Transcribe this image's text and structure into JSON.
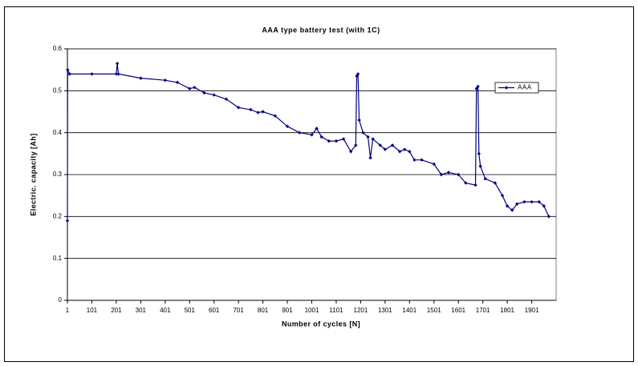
{
  "chart_data": {
    "type": "line",
    "title": "AAA type battery test (with 1C)",
    "x_label": "Number of cycles [N]",
    "y_label": "Electric. capacity [Ah]",
    "xlim": [
      1,
      2001
    ],
    "xticks": [
      1,
      101,
      201,
      301,
      401,
      501,
      601,
      701,
      801,
      901,
      1001,
      1101,
      1201,
      1301,
      1401,
      1501,
      1601,
      1701,
      1801,
      1901
    ],
    "ylim": [
      0,
      0.6
    ],
    "yticks": [
      0,
      0.1,
      0.2,
      0.3,
      0.4,
      0.5,
      0.6
    ],
    "grid": true,
    "legend": "upper right",
    "series": [
      {
        "name": "AAA",
        "color": "#000080",
        "x": [
          1,
          2,
          10,
          101,
          201,
          205,
          210,
          301,
          401,
          451,
          501,
          521,
          561,
          601,
          651,
          701,
          751,
          781,
          801,
          851,
          901,
          951,
          1001,
          1021,
          1041,
          1071,
          1101,
          1131,
          1161,
          1181,
          1185,
          1190,
          1195,
          1211,
          1231,
          1241,
          1251,
          1281,
          1301,
          1331,
          1361,
          1381,
          1401,
          1421,
          1451,
          1501,
          1531,
          1561,
          1601,
          1631,
          1671,
          1675,
          1681,
          1685,
          1691,
          1711,
          1751,
          1781,
          1801,
          1821,
          1841,
          1871,
          1901,
          1931,
          1951,
          1971
        ],
        "values": [
          0.19,
          0.55,
          0.54,
          0.54,
          0.54,
          0.565,
          0.54,
          0.53,
          0.525,
          0.52,
          0.505,
          0.508,
          0.495,
          0.49,
          0.48,
          0.46,
          0.455,
          0.448,
          0.45,
          0.44,
          0.415,
          0.4,
          0.395,
          0.41,
          0.39,
          0.38,
          0.38,
          0.385,
          0.355,
          0.37,
          0.535,
          0.54,
          0.43,
          0.4,
          0.39,
          0.34,
          0.385,
          0.37,
          0.36,
          0.37,
          0.355,
          0.36,
          0.355,
          0.335,
          0.335,
          0.325,
          0.3,
          0.305,
          0.3,
          0.28,
          0.275,
          0.505,
          0.51,
          0.35,
          0.32,
          0.29,
          0.28,
          0.25,
          0.225,
          0.215,
          0.23,
          0.235,
          0.235,
          0.235,
          0.225,
          0.2
        ]
      }
    ]
  }
}
